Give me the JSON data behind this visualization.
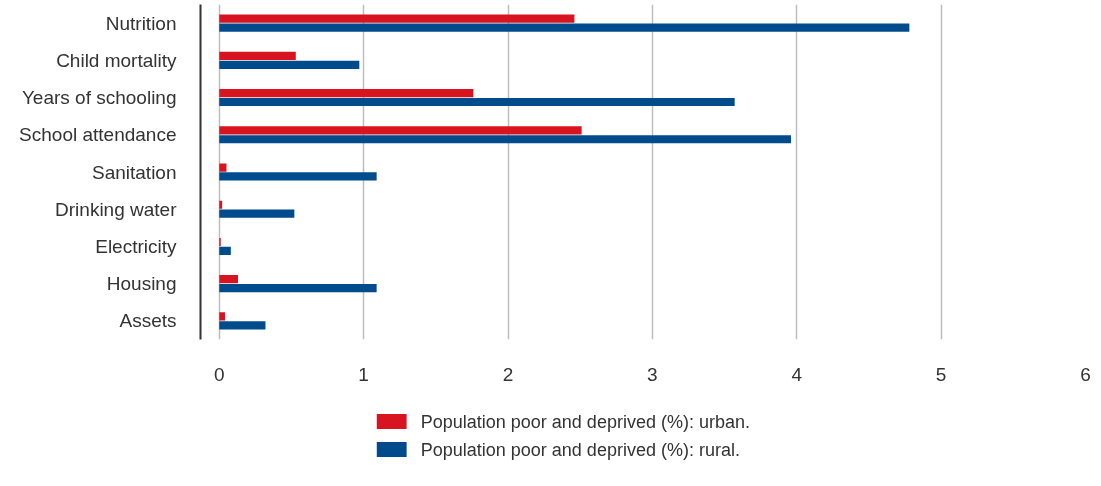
{
  "chart_data": {
    "type": "bar",
    "orientation": "horizontal",
    "categories": [
      "Nutrition",
      "Child mortality",
      "Years of schooling",
      "School attendance",
      "Sanitation",
      "Drinking water",
      "Electricity",
      "Housing",
      "Assets"
    ],
    "series": [
      {
        "name": "Population poor and  deprived (%): urban.",
        "color": "#d7141f",
        "values": [
          2.46,
          0.53,
          1.76,
          2.51,
          0.05,
          0.02,
          0.01,
          0.13,
          0.04
        ]
      },
      {
        "name": "Population poor and deprived (%): rural.",
        "color": "#004b8c",
        "values": [
          4.78,
          0.97,
          3.57,
          3.96,
          1.09,
          0.52,
          0.08,
          1.09,
          0.32
        ]
      }
    ],
    "xlim": [
      -0.13,
      6
    ],
    "xticks": [
      0,
      1,
      2,
      3,
      4,
      5,
      6
    ],
    "grid": "x",
    "legend": "bottom"
  }
}
